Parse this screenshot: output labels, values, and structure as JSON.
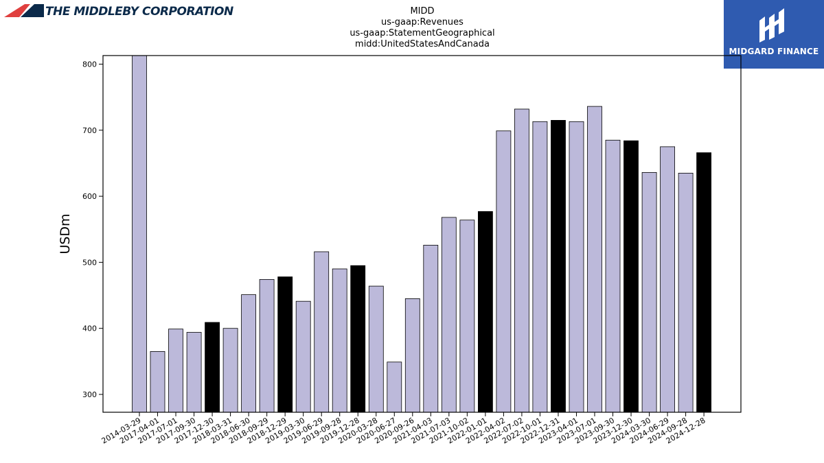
{
  "logos": {
    "left_text": "THE MIDDLEBY CORPORATION",
    "right_text": "MIDGARD FINANCE"
  },
  "colors": {
    "bar_default": "#bcb9da",
    "bar_highlight": "#000000",
    "logo_red": "#e0403f",
    "logo_navy": "#0b2a4a",
    "logo_blue_bg": "#2f5bb0"
  },
  "chart_data": {
    "type": "bar",
    "title": [
      "MIDD",
      "us-gaap:Revenues",
      "us-gaap:StatementGeographical",
      "midd:UnitedStatesAndCanada"
    ],
    "xlabel": "",
    "ylabel": "USDm",
    "ylim": [
      273,
      813
    ],
    "yticks": [
      300,
      400,
      500,
      600,
      700,
      800
    ],
    "grid": false,
    "categories": [
      "2014-03-29",
      "2017-04-01",
      "2017-07-01",
      "2017-09-30",
      "2017-12-30",
      "2018-03-31",
      "2018-06-30",
      "2018-09-29",
      "2018-12-29",
      "2019-03-30",
      "2019-06-29",
      "2019-09-28",
      "2019-12-28",
      "2020-03-28",
      "2020-06-27",
      "2020-09-26",
      "2021-04-03",
      "2021-07-03",
      "2021-10-02",
      "2022-01-01",
      "2022-04-02",
      "2022-07-02",
      "2022-10-01",
      "2022-12-31",
      "2023-04-01",
      "2023-07-01",
      "2023-09-30",
      "2023-12-30",
      "2024-03-30",
      "2024-06-29",
      "2024-09-28",
      "2024-12-28"
    ],
    "values": [
      815,
      365,
      399,
      394,
      409,
      400,
      451,
      474,
      478,
      441,
      516,
      490,
      495,
      464,
      349,
      445,
      526,
      568,
      564,
      577,
      699,
      732,
      713,
      715,
      713,
      736,
      685,
      684,
      636,
      675,
      635,
      666
    ],
    "highlighted": [
      false,
      false,
      false,
      false,
      true,
      false,
      false,
      false,
      true,
      false,
      false,
      false,
      true,
      false,
      false,
      false,
      false,
      false,
      false,
      true,
      false,
      false,
      false,
      true,
      false,
      false,
      false,
      true,
      false,
      false,
      false,
      true
    ]
  }
}
